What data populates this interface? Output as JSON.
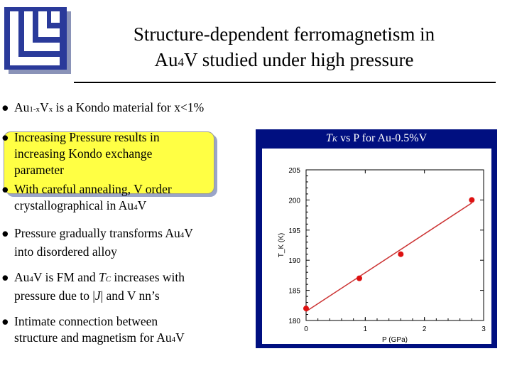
{
  "title": {
    "line1": "Structure-dependent ferromagnetism in",
    "line2_a": "Au",
    "line2_sub": "4",
    "line2_b": "V studied under high pressure"
  },
  "bullets": {
    "dot": "●",
    "b1": {
      "a": "Au",
      "sub1": "1-x",
      "b": "V",
      "sub2": "x",
      "c": " is a Kondo material for x<1%"
    },
    "b2": {
      "line1": "Increasing Pressure results in",
      "line2": "increasing Kondo exchange",
      "line3": "parameter"
    },
    "b3": {
      "line1": "With careful annealing, V order",
      "line2a": "crystallographical in Au",
      "sub": "4",
      "line2b": "V"
    },
    "b4": {
      "line1a": "Pressure gradually transforms Au",
      "sub": "4",
      "line1b": "V",
      "line2": "into disordered alloy"
    },
    "b5": {
      "a": "Au",
      "sub": "4",
      "b": "V is FM and ",
      "t": "T",
      "tsub": "C",
      "c": " increases with",
      "line2a": "pressure due to |",
      "j": "J",
      "line2b": "| and V nn’s"
    },
    "b6": {
      "line1": "Intimate connection between",
      "line2a": "structure and magnetism for Au",
      "sub": "4",
      "line2b": "V"
    }
  },
  "chart_title": {
    "t": "T",
    "sub": "K",
    "rest": " vs P for Au-0.5%V"
  },
  "chart_data": {
    "type": "scatter",
    "title": "T_K vs P for Au-0.5%V",
    "xlabel": "P (GPa)",
    "ylabel": "T_K (K)",
    "xlim": [
      0,
      3
    ],
    "ylim": [
      180,
      205
    ],
    "xticks": [
      "0",
      "1",
      "2",
      "3"
    ],
    "yticks": [
      "180",
      "185",
      "190",
      "195",
      "200",
      "205"
    ],
    "points": [
      {
        "x": 0.0,
        "y": 182.0
      },
      {
        "x": 0.9,
        "y": 187.0
      },
      {
        "x": 1.6,
        "y": 191.0
      },
      {
        "x": 2.8,
        "y": 200.0
      }
    ],
    "fit": [
      {
        "x": 0.0,
        "y": 181.5
      },
      {
        "x": 2.8,
        "y": 199.5
      }
    ],
    "point_color": "#dd1111",
    "line_color": "#cc3333"
  }
}
